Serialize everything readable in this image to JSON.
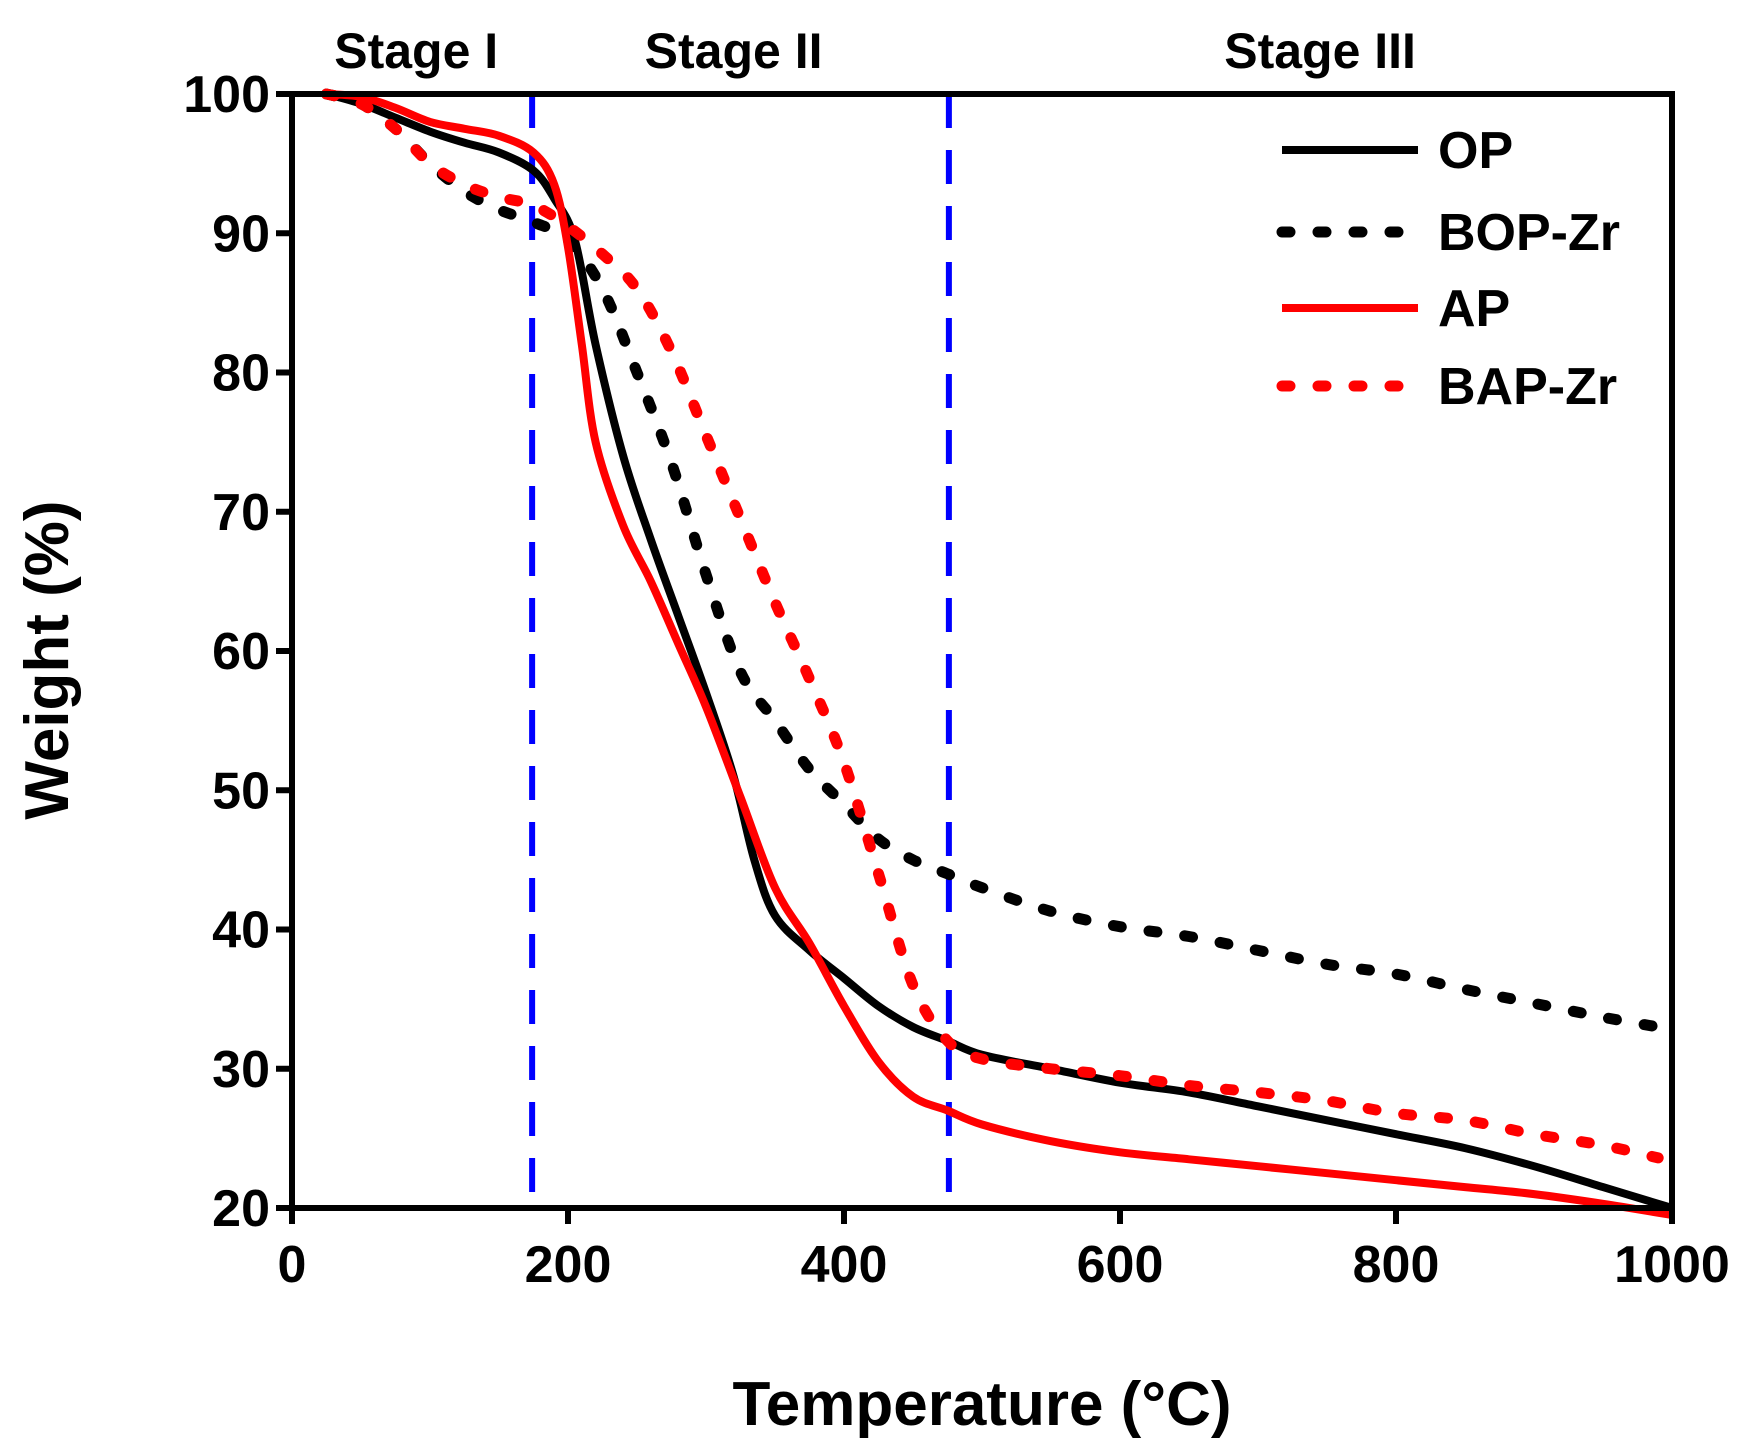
{
  "chart_data": {
    "type": "line",
    "title": "",
    "xlabel": "Temperature (°C)",
    "ylabel": "Weight (%)",
    "xlim": [
      0,
      1000
    ],
    "ylim": [
      20,
      100
    ],
    "xticks": [
      0,
      200,
      400,
      600,
      800,
      1000
    ],
    "yticks": [
      20,
      30,
      40,
      50,
      60,
      70,
      80,
      90,
      100
    ],
    "legend_position": "top-right",
    "stage_dividers": [
      174,
      476
    ],
    "stages": [
      {
        "label": "Stage I",
        "x": 90
      },
      {
        "label": "Stage II",
        "x": 320
      },
      {
        "label": "Stage III",
        "x": 745
      }
    ],
    "series": [
      {
        "name": "OP",
        "color": "#000000",
        "style": "solid",
        "x": [
          25,
          50,
          75,
          100,
          125,
          150,
          175,
          190,
          205,
          220,
          240,
          260,
          280,
          300,
          320,
          335,
          350,
          375,
          400,
          425,
          450,
          475,
          500,
          550,
          600,
          650,
          700,
          750,
          800,
          850,
          900,
          950,
          1000
        ],
        "y": [
          100,
          99.3,
          98.3,
          97.3,
          96.5,
          95.8,
          94.5,
          92.5,
          89.5,
          82,
          74,
          68,
          62.5,
          57,
          51,
          45,
          41,
          38.5,
          36.5,
          34.5,
          33,
          32,
          31,
          30,
          29,
          28.3,
          27.3,
          26.3,
          25.3,
          24.3,
          23,
          21.5,
          20
        ]
      },
      {
        "name": "BOP-Zr",
        "color": "#000000",
        "style": "dotted",
        "x": [
          25,
          50,
          75,
          100,
          125,
          150,
          175,
          200,
          225,
          250,
          275,
          300,
          325,
          350,
          375,
          400,
          425,
          450,
          475,
          500,
          550,
          600,
          650,
          700,
          750,
          800,
          850,
          900,
          950,
          990
        ],
        "y": [
          100,
          99.3,
          97.5,
          95,
          93,
          91.7,
          90.8,
          89.5,
          86,
          80,
          73.5,
          65.5,
          58.5,
          55,
          51.5,
          49,
          46.5,
          45,
          44,
          43,
          41.3,
          40.2,
          39.5,
          38.5,
          37.5,
          36.8,
          35.7,
          34.7,
          33.7,
          33
        ]
      },
      {
        "name": "AP",
        "color": "#ff0000",
        "style": "solid",
        "x": [
          25,
          50,
          75,
          100,
          125,
          150,
          175,
          190,
          200,
          210,
          220,
          240,
          260,
          280,
          300,
          325,
          350,
          375,
          400,
          425,
          450,
          475,
          500,
          550,
          600,
          650,
          700,
          750,
          800,
          850,
          900,
          950,
          1000
        ],
        "y": [
          100,
          99.8,
          99,
          98,
          97.5,
          97,
          95.8,
          93.5,
          89,
          82,
          75,
          69,
          65,
          60.5,
          56,
          49.5,
          43,
          39,
          34.5,
          30.5,
          28,
          27,
          26,
          24.8,
          24,
          23.5,
          23,
          22.5,
          22,
          21.5,
          21,
          20.3,
          19.5
        ]
      },
      {
        "name": "BAP-Zr",
        "color": "#ff0000",
        "style": "dotted",
        "x": [
          25,
          50,
          75,
          100,
          125,
          150,
          175,
          200,
          225,
          250,
          275,
          300,
          325,
          350,
          375,
          400,
          425,
          450,
          475,
          500,
          550,
          600,
          650,
          700,
          750,
          800,
          850,
          900,
          950,
          990
        ],
        "y": [
          100,
          99.3,
          97.5,
          95,
          93.5,
          92.6,
          92,
          90.5,
          88.5,
          86,
          81.5,
          75.5,
          69.5,
          63.5,
          58,
          52,
          44,
          36,
          32,
          30.7,
          30,
          29.5,
          28.8,
          28.3,
          27.7,
          26.8,
          26.3,
          25.3,
          24.5,
          23.6
        ]
      }
    ]
  }
}
